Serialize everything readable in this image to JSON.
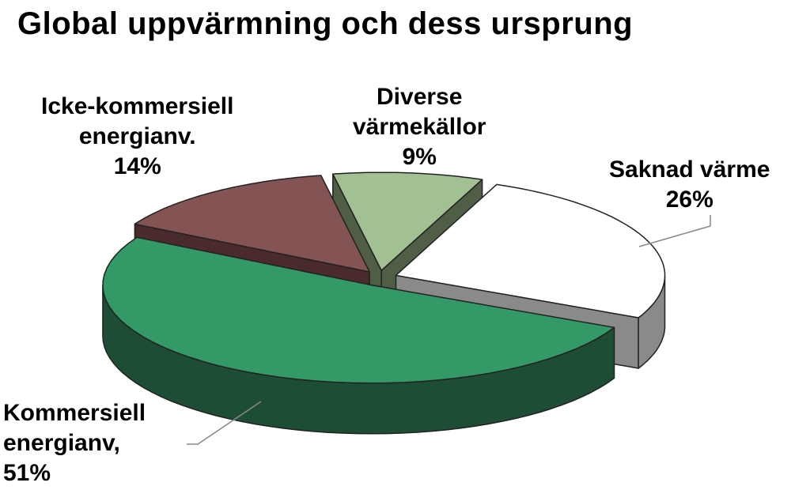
{
  "chart_data": {
    "type": "pie",
    "title": "Global uppvärmning och dess ursprung",
    "slices": [
      {
        "label_lines": [
          "Saknad värme"
        ],
        "percent_label": "26%",
        "value": 26,
        "color": "#ffffff",
        "side_color": "#8a8a8a"
      },
      {
        "label_lines": [
          "Kommersiell",
          "energianv,"
        ],
        "percent_label": "51%",
        "value": 51,
        "color": "#339966",
        "side_color": "#1e4d36"
      },
      {
        "label_lines": [
          "Icke-kommersiell",
          "energianv."
        ],
        "percent_label": "14%",
        "value": 14,
        "color": "#845454",
        "side_color": "#4a2a2a"
      },
      {
        "label_lines": [
          "Diverse",
          "värmekällor"
        ],
        "percent_label": "9%",
        "value": 9,
        "color": "#a2c193",
        "side_color": "#4f5e45"
      }
    ],
    "legend": "none",
    "exploded": true,
    "three_d": true
  }
}
